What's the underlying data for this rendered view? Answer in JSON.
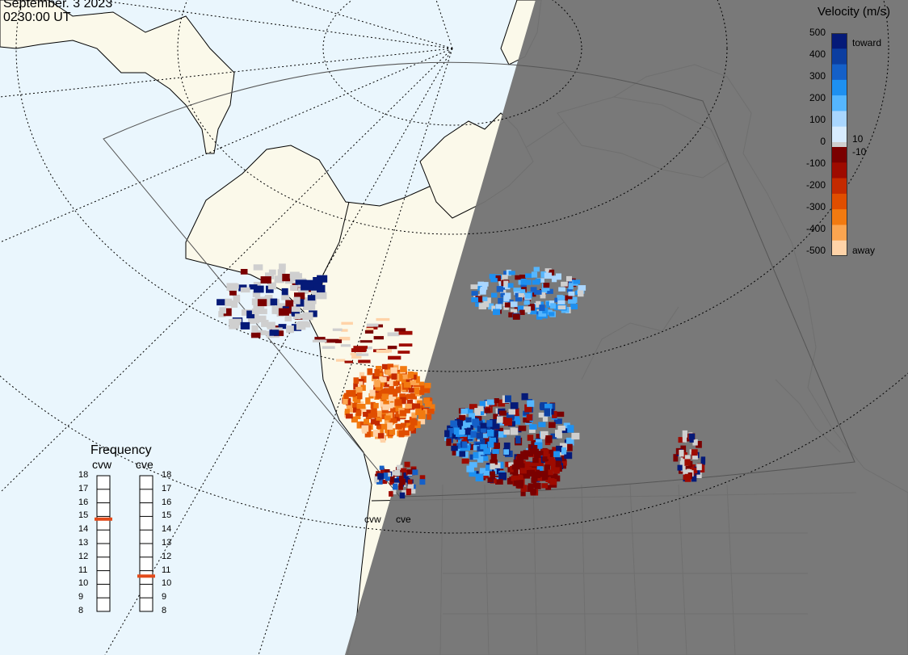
{
  "header": {
    "date": "September. 3 2023",
    "time": "0230:00 UT"
  },
  "velocity_scale": {
    "title": "Velocity (m/s)",
    "ticks": [
      "500",
      "400",
      "300",
      "200",
      "100",
      "0",
      "-100",
      "-200",
      "-300",
      "-400",
      "-500"
    ],
    "inner_ticks": {
      "pos": "10",
      "neg": "-10"
    },
    "toward_label": "toward",
    "away_label": "away",
    "toward_colors": [
      "#d8ecff",
      "#a9d6ff",
      "#55b6ff",
      "#1e90f0",
      "#1560c8",
      "#0c3ea0",
      "#051a78"
    ],
    "away_colors": [
      "#7a0000",
      "#9e0b00",
      "#c42a00",
      "#e04e00",
      "#f27a10",
      "#fba550",
      "#ffd3a8"
    ]
  },
  "frequency": {
    "title": "Frequency",
    "radars": [
      "cvw",
      "cve"
    ],
    "scale": [
      "18",
      "17",
      "16",
      "15",
      "14",
      "13",
      "12",
      "11",
      "10",
      "9",
      "8"
    ],
    "values_mhz": {
      "cvw": 14.8,
      "cve": 10.6
    },
    "marker_color": "#e24a1a"
  },
  "map": {
    "radar_labels": [
      "cvw",
      "cve"
    ],
    "colors": {
      "ocean": "#eaf6fd",
      "land": "#fbf9ea",
      "night": "#747474",
      "ground_scatter": "#cfcfcf"
    }
  }
}
